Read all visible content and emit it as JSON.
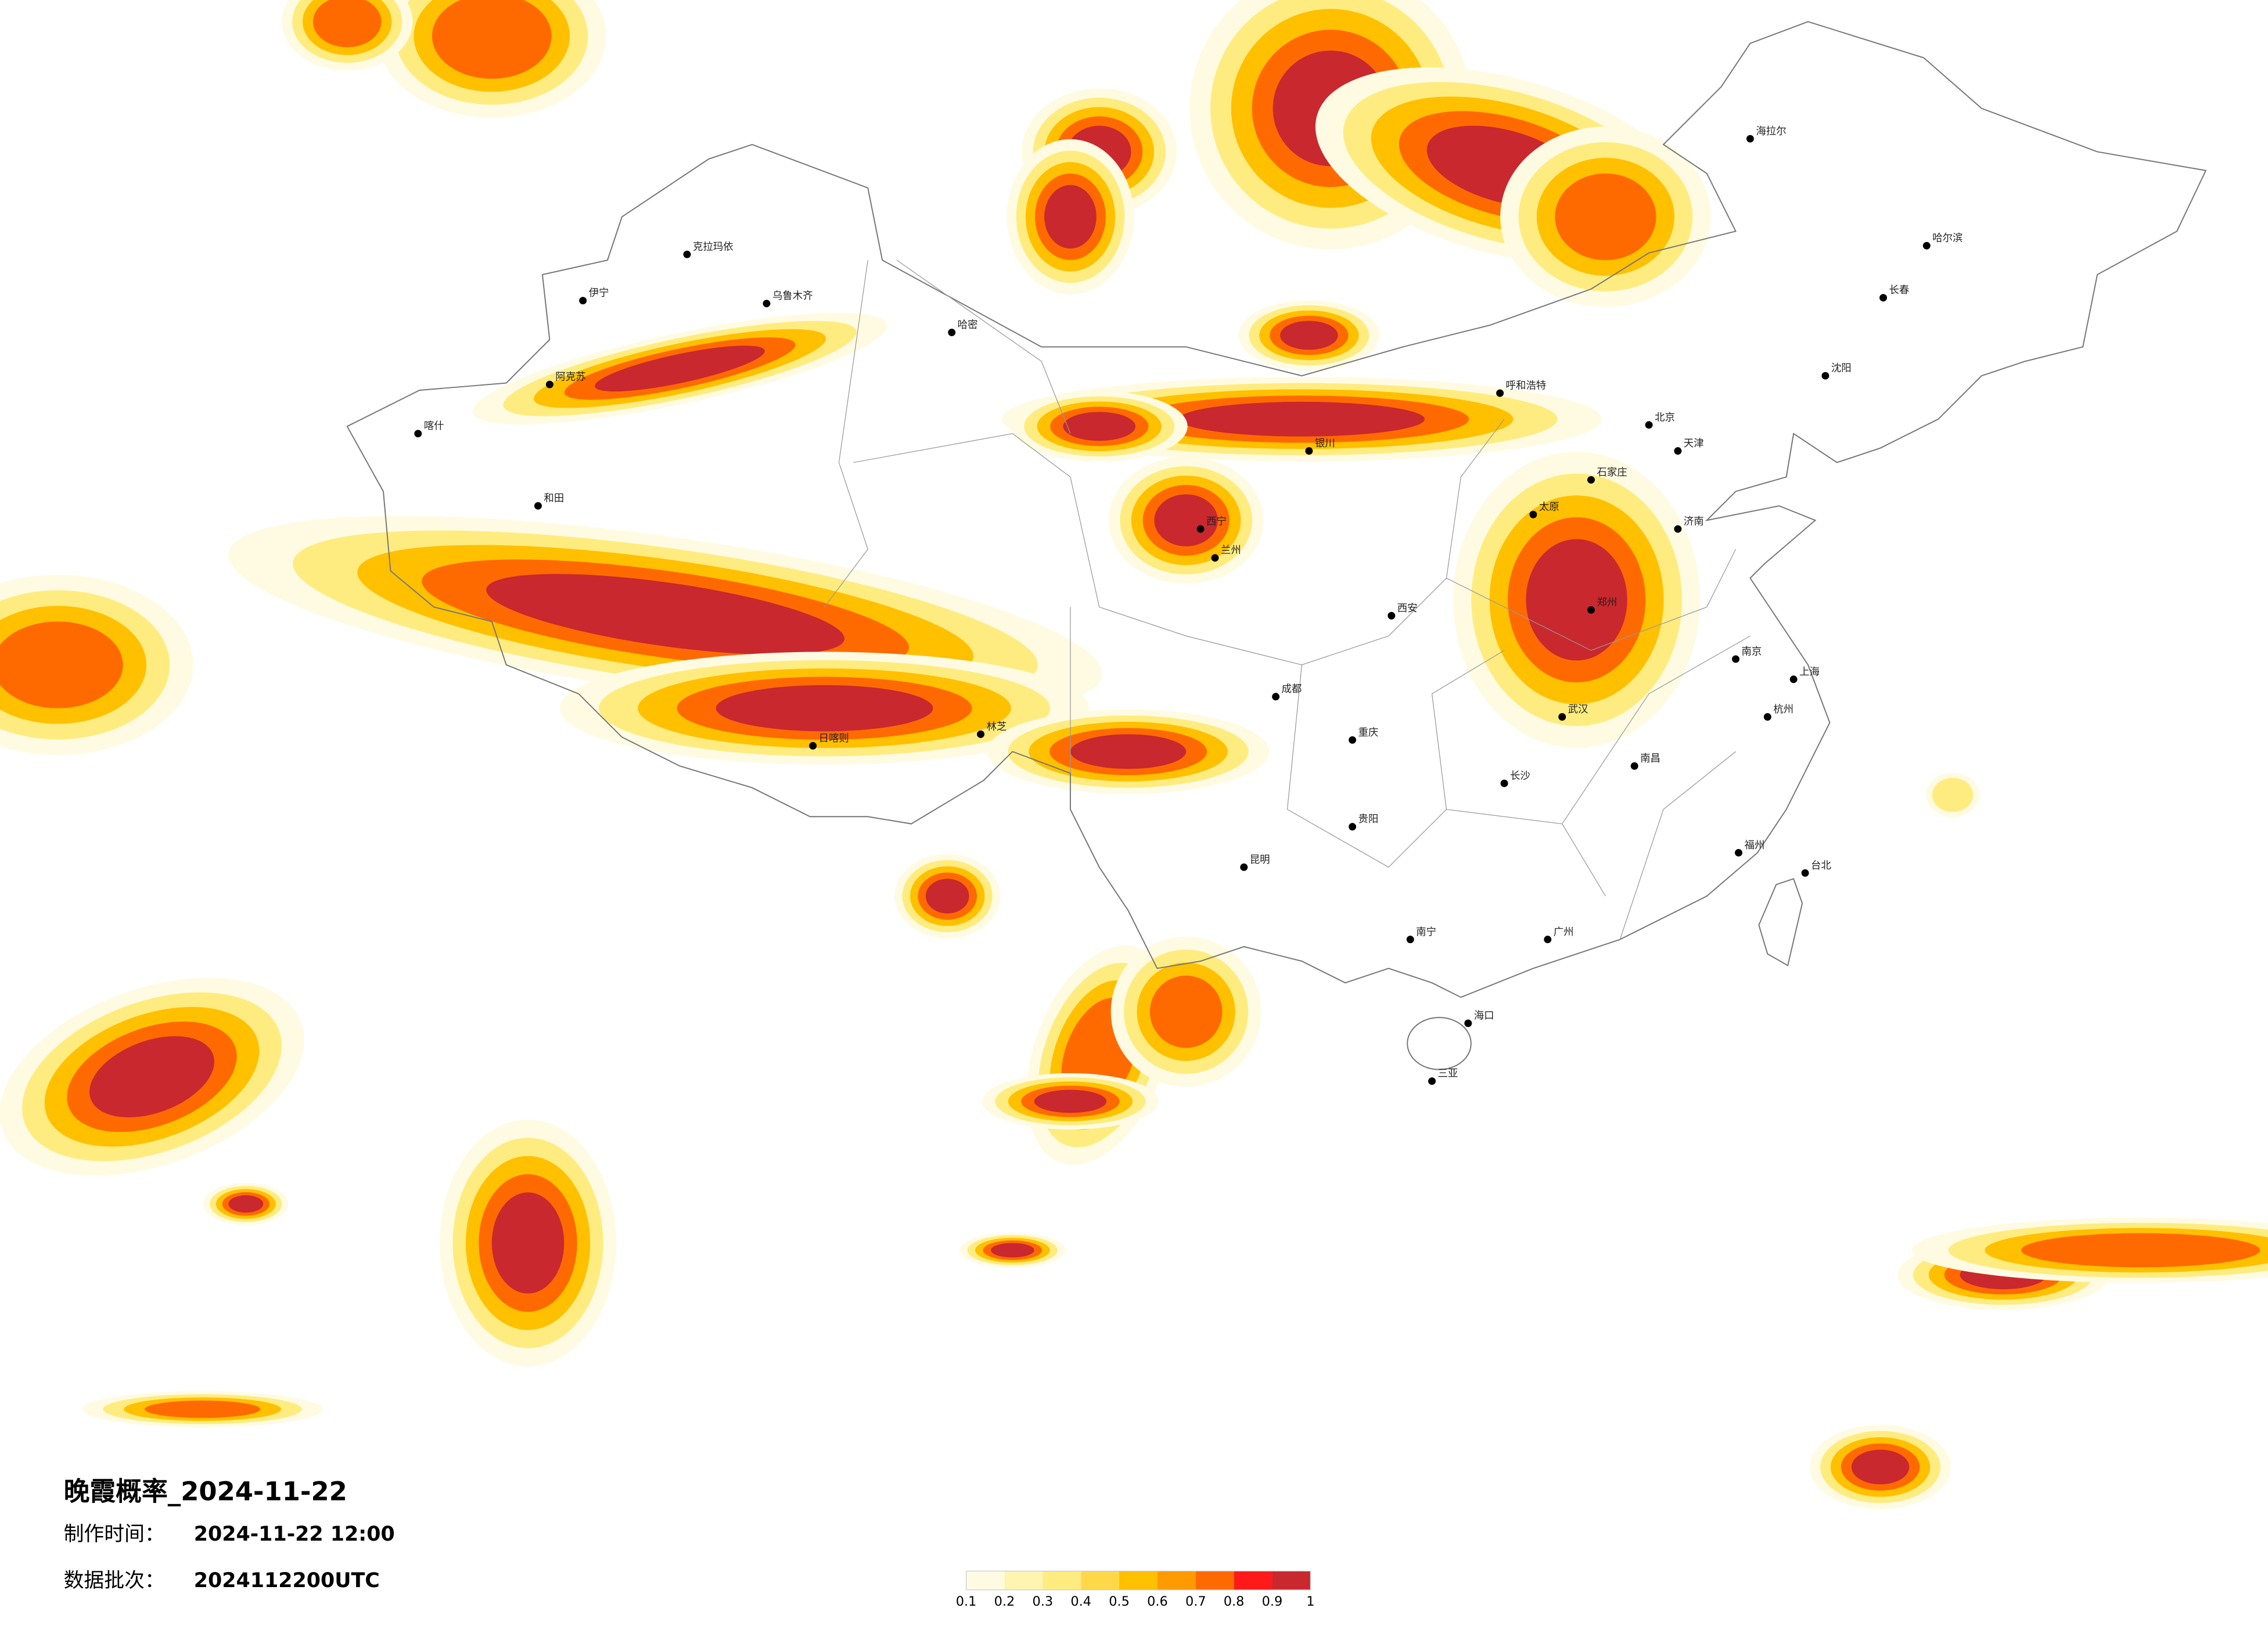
{
  "title": "晚霞概率_2024-11-22",
  "info": [
    {
      "label": "制作时间：",
      "value": "2024-11-22 12:00"
    },
    {
      "label": "数据批次：",
      "value": "2024112200UTC"
    }
  ],
  "legend": {
    "colors": [
      "#fffbe3",
      "#fff4b0",
      "#ffec80",
      "#ffd84a",
      "#ffc000",
      "#ff9a00",
      "#ff6a00",
      "#ff1a1a",
      "#c8282e"
    ],
    "ticks": [
      0.1,
      0.2,
      0.3,
      0.4,
      0.5,
      0.6,
      0.7,
      0.8,
      0.9,
      1
    ]
  },
  "cities": [
    "克拉玛依",
    "乌鲁木齐",
    "伊宁",
    "阿克苏",
    "喀什",
    "和田",
    "哈密",
    "日喀则",
    "林芝",
    "西宁",
    "兰州",
    "银川",
    "呼和浩特",
    "北京",
    "天津",
    "石家庄",
    "济南",
    "郑州",
    "武汉",
    "南京",
    "上海",
    "杭州",
    "长沙",
    "南昌",
    "福州",
    "广州",
    "南宁",
    "海口",
    "昆明",
    "贵阳",
    "成都",
    "重庆",
    "西安",
    "太原",
    "沈阳",
    "长春",
    "哈尔滨",
    "台北",
    "三亚",
    "海拉尔"
  ]
}
